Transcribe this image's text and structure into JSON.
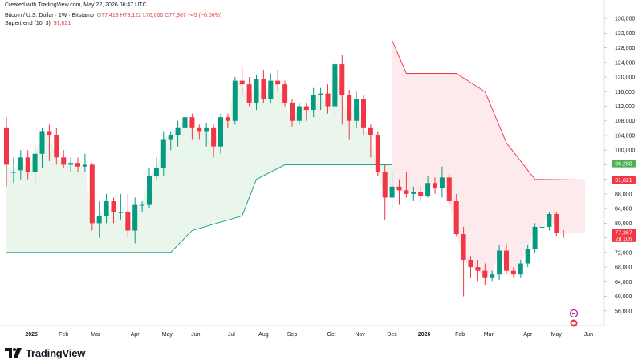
{
  "header": {
    "created_line": "Created with TradingView.com, May 22, 2026 06:47 UTC",
    "symbol": "Bitcoin / U.S. Dollar · 1W · Bitstamp",
    "o_label": "O",
    "o_value": "77,419",
    "h_label": "H",
    "h_value": "78,122",
    "l_label": "L",
    "l_value": "76,000",
    "c_label": "C",
    "c_value": "77,367",
    "change": "−45 (−0.06%)",
    "indicator_name": "Supertrend (10, 3)",
    "indicator_value": "91,821"
  },
  "brand": {
    "name": "TradingView"
  },
  "colors": {
    "up": "#089981",
    "down": "#f23645",
    "up_fill": "#e8f5e9",
    "down_fill": "#fde8ea",
    "axis_text": "#131722",
    "badge_green": "#4caf50"
  },
  "chart_data": {
    "type": "candlestick",
    "ylim": [
      52000,
      138000
    ],
    "y_ticks": [
      56000,
      60000,
      64000,
      68000,
      72000,
      76000,
      80000,
      84000,
      88000,
      92000,
      96000,
      100000,
      104000,
      108000,
      112000,
      116000,
      120000,
      124000,
      128000,
      132000,
      136000
    ],
    "y_tick_labels": [
      "56,000",
      "60,000",
      "64,000",
      "68,000",
      "72,000",
      "76,000",
      "80,000",
      "84,000",
      "88,000",
      "92,000",
      "96,000",
      "100,000",
      "104,000",
      "108,000",
      "112,000",
      "116,000",
      "120,000",
      "124,000",
      "128,000",
      "132,000",
      "136,000"
    ],
    "x_labels": [
      {
        "text": "2025",
        "idx": 3.5,
        "bold": true
      },
      {
        "text": "Feb",
        "idx": 8
      },
      {
        "text": "Mar",
        "idx": 12.5
      },
      {
        "text": "Apr",
        "idx": 18
      },
      {
        "text": "May",
        "idx": 22.5
      },
      {
        "text": "Jun",
        "idx": 26.5
      },
      {
        "text": "Jul",
        "idx": 31.5
      },
      {
        "text": "Aug",
        "idx": 36
      },
      {
        "text": "Sep",
        "idx": 40
      },
      {
        "text": "Oct",
        "idx": 45.5
      },
      {
        "text": "Nov",
        "idx": 49.5
      },
      {
        "text": "Dec",
        "idx": 54
      },
      {
        "text": "2026",
        "idx": 58.5,
        "bold": true
      },
      {
        "text": "Feb",
        "idx": 63.5
      },
      {
        "text": "Mar",
        "idx": 67.5
      },
      {
        "text": "Apr",
        "idx": 73
      },
      {
        "text": "May",
        "idx": 77
      },
      {
        "text": "Jun",
        "idx": 81.5
      }
    ],
    "candles": [
      {
        "o": 106000,
        "h": 109000,
        "l": 90000,
        "c": 96000
      },
      {
        "o": 94000,
        "h": 98000,
        "l": 91000,
        "c": 94000
      },
      {
        "o": 94500,
        "h": 100000,
        "l": 92000,
        "c": 98000
      },
      {
        "o": 98000,
        "h": 100000,
        "l": 92000,
        "c": 94000
      },
      {
        "o": 94000,
        "h": 102000,
        "l": 91000,
        "c": 99000
      },
      {
        "o": 99000,
        "h": 106000,
        "l": 95000,
        "c": 105000
      },
      {
        "o": 105000,
        "h": 107000,
        "l": 97000,
        "c": 104000
      },
      {
        "o": 104000,
        "h": 106000,
        "l": 96000,
        "c": 98000
      },
      {
        "o": 98000,
        "h": 100000,
        "l": 95000,
        "c": 96000
      },
      {
        "o": 96000,
        "h": 98000,
        "l": 94000,
        "c": 96500
      },
      {
        "o": 96500,
        "h": 98000,
        "l": 94000,
        "c": 95500
      },
      {
        "o": 95500,
        "h": 99000,
        "l": 94000,
        "c": 96000
      },
      {
        "o": 96000,
        "h": 96500,
        "l": 78000,
        "c": 80000
      },
      {
        "o": 80000,
        "h": 86000,
        "l": 76000,
        "c": 82000
      },
      {
        "o": 82000,
        "h": 88000,
        "l": 80000,
        "c": 86000
      },
      {
        "o": 86000,
        "h": 87000,
        "l": 80000,
        "c": 83000
      },
      {
        "o": 83000,
        "h": 88000,
        "l": 81000,
        "c": 83000
      },
      {
        "o": 83000,
        "h": 88000,
        "l": 76000,
        "c": 78000
      },
      {
        "o": 78000,
        "h": 87000,
        "l": 74500,
        "c": 85000
      },
      {
        "o": 85000,
        "h": 86000,
        "l": 83000,
        "c": 85000
      },
      {
        "o": 85000,
        "h": 95000,
        "l": 84000,
        "c": 93000
      },
      {
        "o": 93000,
        "h": 98000,
        "l": 92000,
        "c": 95000
      },
      {
        "o": 95000,
        "h": 105000,
        "l": 93000,
        "c": 103000
      },
      {
        "o": 103000,
        "h": 105000,
        "l": 100000,
        "c": 104000
      },
      {
        "o": 104000,
        "h": 108000,
        "l": 101000,
        "c": 106000
      },
      {
        "o": 106000,
        "h": 110000,
        "l": 104000,
        "c": 109000
      },
      {
        "o": 109000,
        "h": 110000,
        "l": 103000,
        "c": 106000
      },
      {
        "o": 106000,
        "h": 107000,
        "l": 103000,
        "c": 105000
      },
      {
        "o": 105000,
        "h": 107500,
        "l": 101000,
        "c": 106000
      },
      {
        "o": 106000,
        "h": 107000,
        "l": 98000,
        "c": 101000
      },
      {
        "o": 101000,
        "h": 110000,
        "l": 99000,
        "c": 109000
      },
      {
        "o": 109000,
        "h": 110000,
        "l": 106000,
        "c": 108000
      },
      {
        "o": 108000,
        "h": 120000,
        "l": 107000,
        "c": 119000
      },
      {
        "o": 119000,
        "h": 123000,
        "l": 115000,
        "c": 118000
      },
      {
        "o": 118000,
        "h": 120000,
        "l": 112000,
        "c": 113000
      },
      {
        "o": 113000,
        "h": 120500,
        "l": 111000,
        "c": 119500
      },
      {
        "o": 119500,
        "h": 122000,
        "l": 113000,
        "c": 114000
      },
      {
        "o": 114000,
        "h": 121000,
        "l": 113000,
        "c": 119000
      },
      {
        "o": 119000,
        "h": 122000,
        "l": 116000,
        "c": 118000
      },
      {
        "o": 118000,
        "h": 119000,
        "l": 112000,
        "c": 113000
      },
      {
        "o": 113000,
        "h": 114000,
        "l": 106500,
        "c": 108000
      },
      {
        "o": 108000,
        "h": 113000,
        "l": 107000,
        "c": 112000
      },
      {
        "o": 112000,
        "h": 113000,
        "l": 108000,
        "c": 111000
      },
      {
        "o": 111000,
        "h": 117000,
        "l": 109000,
        "c": 115000
      },
      {
        "o": 115000,
        "h": 117000,
        "l": 111000,
        "c": 115500
      },
      {
        "o": 115500,
        "h": 118000,
        "l": 110000,
        "c": 112000
      },
      {
        "o": 112000,
        "h": 125000,
        "l": 109000,
        "c": 123500
      },
      {
        "o": 123500,
        "h": 126000,
        "l": 107000,
        "c": 115000
      },
      {
        "o": 115000,
        "h": 116500,
        "l": 103000,
        "c": 108000
      },
      {
        "o": 108000,
        "h": 116000,
        "l": 106000,
        "c": 114000
      },
      {
        "o": 114000,
        "h": 115000,
        "l": 104000,
        "c": 106000
      },
      {
        "o": 106000,
        "h": 107000,
        "l": 98000,
        "c": 104000
      },
      {
        "o": 104000,
        "h": 105000,
        "l": 93000,
        "c": 94000
      },
      {
        "o": 94000,
        "h": 96000,
        "l": 81000,
        "c": 87000
      },
      {
        "o": 87000,
        "h": 94000,
        "l": 84000,
        "c": 90000
      },
      {
        "o": 90000,
        "h": 92000,
        "l": 85000,
        "c": 89000
      },
      {
        "o": 89000,
        "h": 94000,
        "l": 87000,
        "c": 88000
      },
      {
        "o": 88000,
        "h": 90000,
        "l": 86000,
        "c": 88500
      },
      {
        "o": 88500,
        "h": 90000,
        "l": 86000,
        "c": 87500
      },
      {
        "o": 87500,
        "h": 93000,
        "l": 87000,
        "c": 91000
      },
      {
        "o": 91000,
        "h": 92500,
        "l": 88000,
        "c": 89500
      },
      {
        "o": 89500,
        "h": 95500,
        "l": 87000,
        "c": 92500
      },
      {
        "o": 92500,
        "h": 93500,
        "l": 85000,
        "c": 86000
      },
      {
        "o": 86000,
        "h": 88000,
        "l": 76500,
        "c": 77000
      },
      {
        "o": 77000,
        "h": 79000,
        "l": 60000,
        "c": 70000
      },
      {
        "o": 70000,
        "h": 71000,
        "l": 65000,
        "c": 68000
      },
      {
        "o": 68000,
        "h": 70000,
        "l": 64000,
        "c": 67000
      },
      {
        "o": 67000,
        "h": 69000,
        "l": 63000,
        "c": 65000
      },
      {
        "o": 65000,
        "h": 67000,
        "l": 64000,
        "c": 66000
      },
      {
        "o": 66000,
        "h": 74000,
        "l": 64500,
        "c": 72500
      },
      {
        "o": 72500,
        "h": 74500,
        "l": 66000,
        "c": 67000
      },
      {
        "o": 67000,
        "h": 68000,
        "l": 65000,
        "c": 66000
      },
      {
        "o": 66000,
        "h": 70000,
        "l": 65000,
        "c": 69000
      },
      {
        "o": 69000,
        "h": 74000,
        "l": 68000,
        "c": 73000
      },
      {
        "o": 73000,
        "h": 80000,
        "l": 72000,
        "c": 79000
      },
      {
        "o": 79000,
        "h": 81000,
        "l": 77000,
        "c": 79000
      },
      {
        "o": 79000,
        "h": 83000,
        "l": 78000,
        "c": 82500
      },
      {
        "o": 82500,
        "h": 83000,
        "l": 76500,
        "c": 77400
      },
      {
        "o": 77419,
        "h": 78122,
        "l": 76000,
        "c": 77367
      }
    ],
    "supertrend": {
      "up": [
        [
          0,
          72000
        ],
        [
          23,
          72000
        ],
        [
          26,
          78000
        ],
        [
          33,
          82000
        ],
        [
          35,
          92000
        ],
        [
          39,
          96000
        ],
        [
          54,
          96000
        ]
      ],
      "down": [
        [
          54,
          130000
        ],
        [
          56,
          121000
        ],
        [
          63,
          121000
        ],
        [
          67,
          116000
        ],
        [
          70,
          102000
        ],
        [
          74,
          92000
        ],
        [
          81,
          91821
        ]
      ]
    },
    "price_labels": [
      {
        "kind": "supertrend-up",
        "value": 96280,
        "text": "96,280"
      },
      {
        "kind": "supertrend-down",
        "value": 91821,
        "text": "91,821"
      },
      {
        "kind": "last-price",
        "value": 77367,
        "text": "77,367",
        "sub": "2d 10h"
      }
    ]
  }
}
